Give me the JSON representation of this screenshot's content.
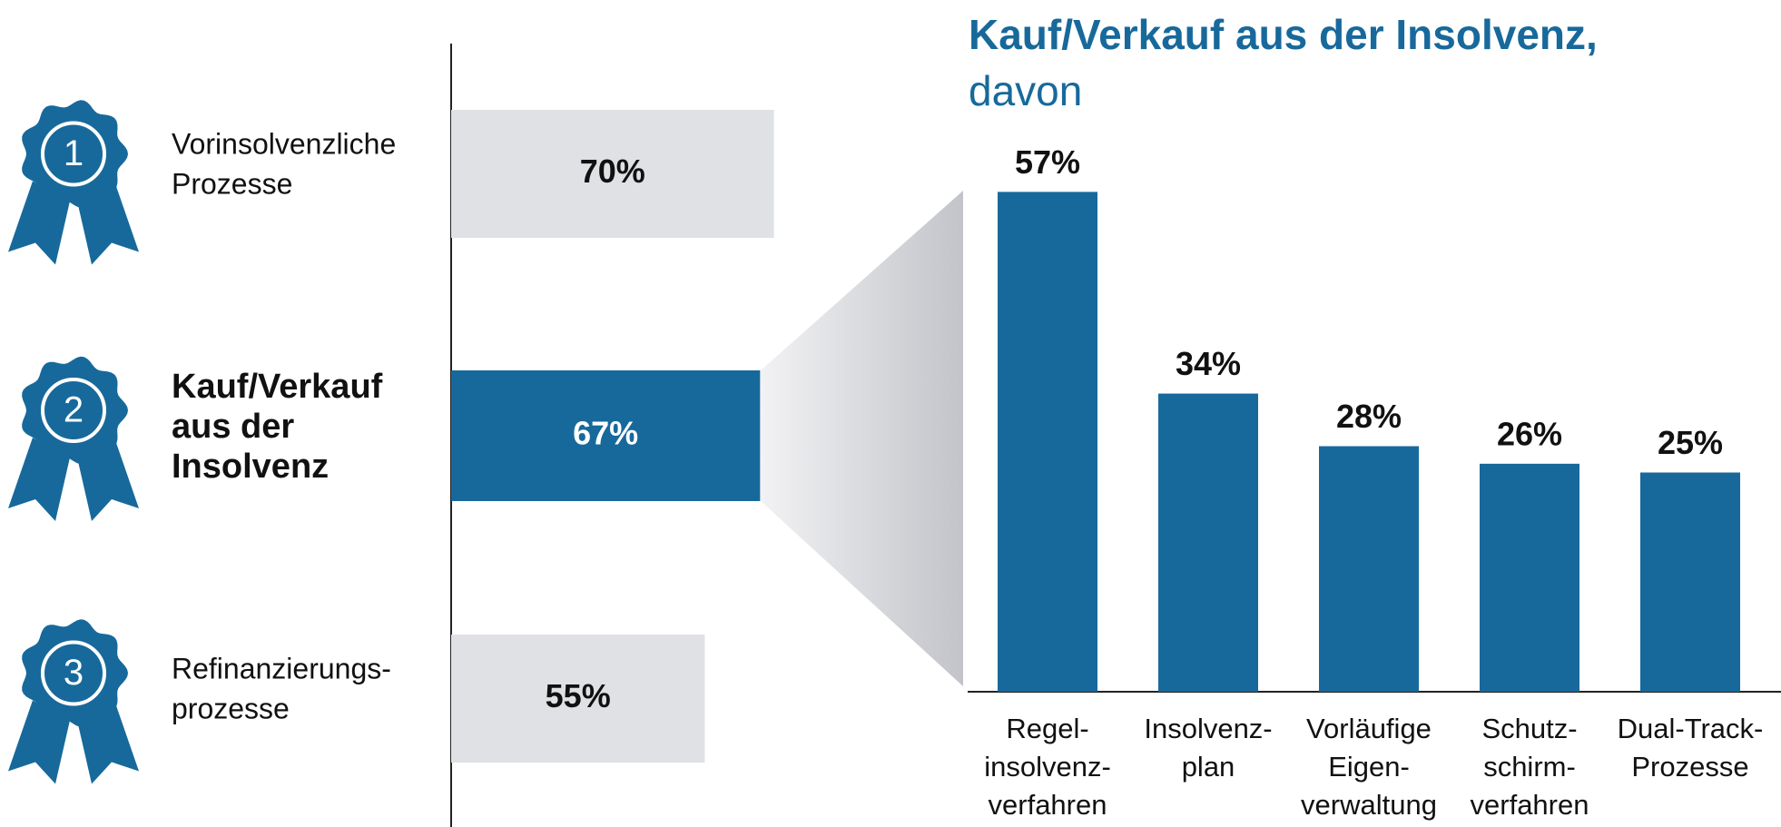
{
  "chart_data": [
    {
      "type": "hbar",
      "ranks": [
        "1",
        "2",
        "3"
      ],
      "categories": [
        "Vorinsolvenzliche\nProzesse",
        "Kauf/Verkauf\naus der\nInsolvenz",
        "Refinanzierungs-\nprozesse"
      ],
      "values": [
        70,
        67,
        55
      ],
      "value_labels": [
        "70%",
        "67%",
        "55%"
      ],
      "colors": [
        "#e0e1e5",
        "#17699b",
        "#e0e1e5"
      ],
      "highlight": 1
    },
    {
      "type": "bar",
      "title": "Kauf/Verkauf aus der Insolvenz,",
      "subtitle": "davon",
      "categories": [
        "Regel-\ninsolvenz-\nverfahren",
        "Insolvenz-\nplan",
        "Vorläufige\nEigen-\nverwaltung",
        "Schutz-\nschirm-\nverfahren",
        "Dual-Track-\nProzesse"
      ],
      "values": [
        57,
        34,
        28,
        26,
        25
      ],
      "value_labels": [
        "57%",
        "34%",
        "28%",
        "26%",
        "25%"
      ],
      "color": "#17699b"
    }
  ]
}
